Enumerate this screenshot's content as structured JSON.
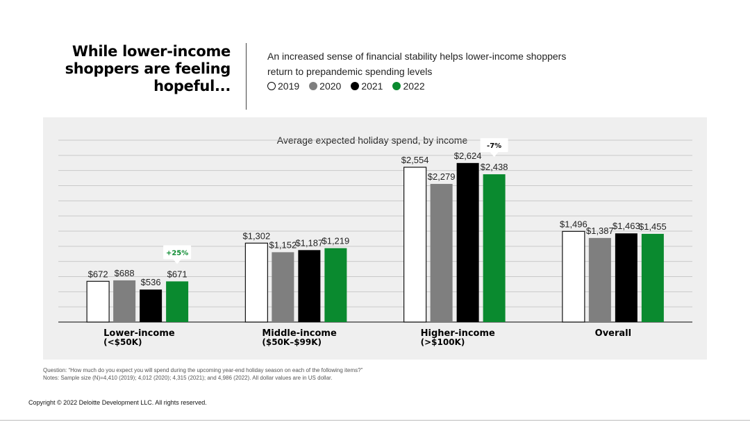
{
  "header": {
    "headline": "While lower-income shoppers are feeling hopeful...",
    "subtitle": "An increased sense of financial stability helps lower-income shoppers return to prepandemic spending levels"
  },
  "legend": [
    {
      "label": "2019",
      "color": "#ffffff",
      "border": "#000000"
    },
    {
      "label": "2020",
      "color": "#7f7f7f",
      "border": "#7f7f7f"
    },
    {
      "label": "2021",
      "color": "#000000",
      "border": "#000000"
    },
    {
      "label": "2022",
      "color": "#0a8a2f",
      "border": "#0a8a2f"
    }
  ],
  "chart_data": {
    "type": "bar",
    "title": "Average expected holiday spend, by income",
    "categories": [
      {
        "line1": "Lower-income",
        "line2": "(<$50K)"
      },
      {
        "line1": "Middle-income",
        "line2": "($50K–$99K)"
      },
      {
        "line1": "Higher-income",
        "line2": "(>$100K)"
      },
      {
        "line1": "Overall",
        "line2": ""
      }
    ],
    "series": [
      {
        "name": "2019",
        "color": "#ffffff",
        "values": [
          672,
          1302,
          2554,
          1496
        ],
        "labels": [
          "$672",
          "$1,302",
          "$2,554",
          "$1,496"
        ]
      },
      {
        "name": "2020",
        "color": "#7f7f7f",
        "values": [
          688,
          1152,
          2279,
          1387
        ],
        "labels": [
          "$688",
          "$1,152",
          "$2,279",
          "$1,387"
        ]
      },
      {
        "name": "2021",
        "color": "#000000",
        "values": [
          536,
          1187,
          2624,
          1463
        ],
        "labels": [
          "$536",
          "$1,187",
          "$2,624",
          "$1,463"
        ]
      },
      {
        "name": "2022",
        "color": "#0a8a2f",
        "values": [
          671,
          1219,
          2438,
          1455
        ],
        "labels": [
          "$671",
          "$1,219",
          "$2,438",
          "$1,455"
        ]
      }
    ],
    "annotations": [
      {
        "category": 0,
        "text": "+25%",
        "color": "#0a8a2f"
      },
      {
        "category": 2,
        "text": "-7%",
        "color": "#000000"
      }
    ],
    "ylim": [
      0,
      3000
    ],
    "grid": true,
    "legend": "top"
  },
  "footer": {
    "question": "Question: “How much do you expect you will spend during the upcoming year-end holiday season on each of the following items?”",
    "notes": "Notes: Sample size (N)=4,410 (2019); 4,012 (2020); 4,315 (2021); and 4,986 (2022). All dollar values are in US dollar.",
    "copyright": "Copyright © 2022 Deloitte Development LLC. All rights reserved."
  }
}
